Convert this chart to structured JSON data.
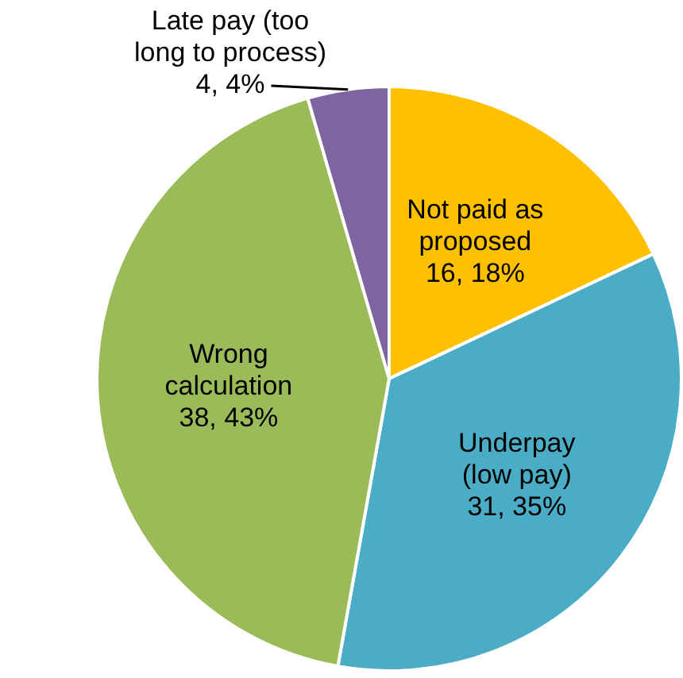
{
  "chart_data": {
    "type": "pie",
    "categories": [
      "Not paid as proposed",
      "Underpay (low pay)",
      "Wrong calculation",
      "Late pay (too long to process)"
    ],
    "values": [
      16,
      31,
      38,
      4
    ],
    "colors": [
      "#ffc000",
      "#4bacc6",
      "#9bbb59",
      "#8064a2"
    ],
    "value_labels": [
      "16, 18%",
      "31, 35%",
      "38, 43%",
      "4, 4%"
    ],
    "legend": false
  }
}
